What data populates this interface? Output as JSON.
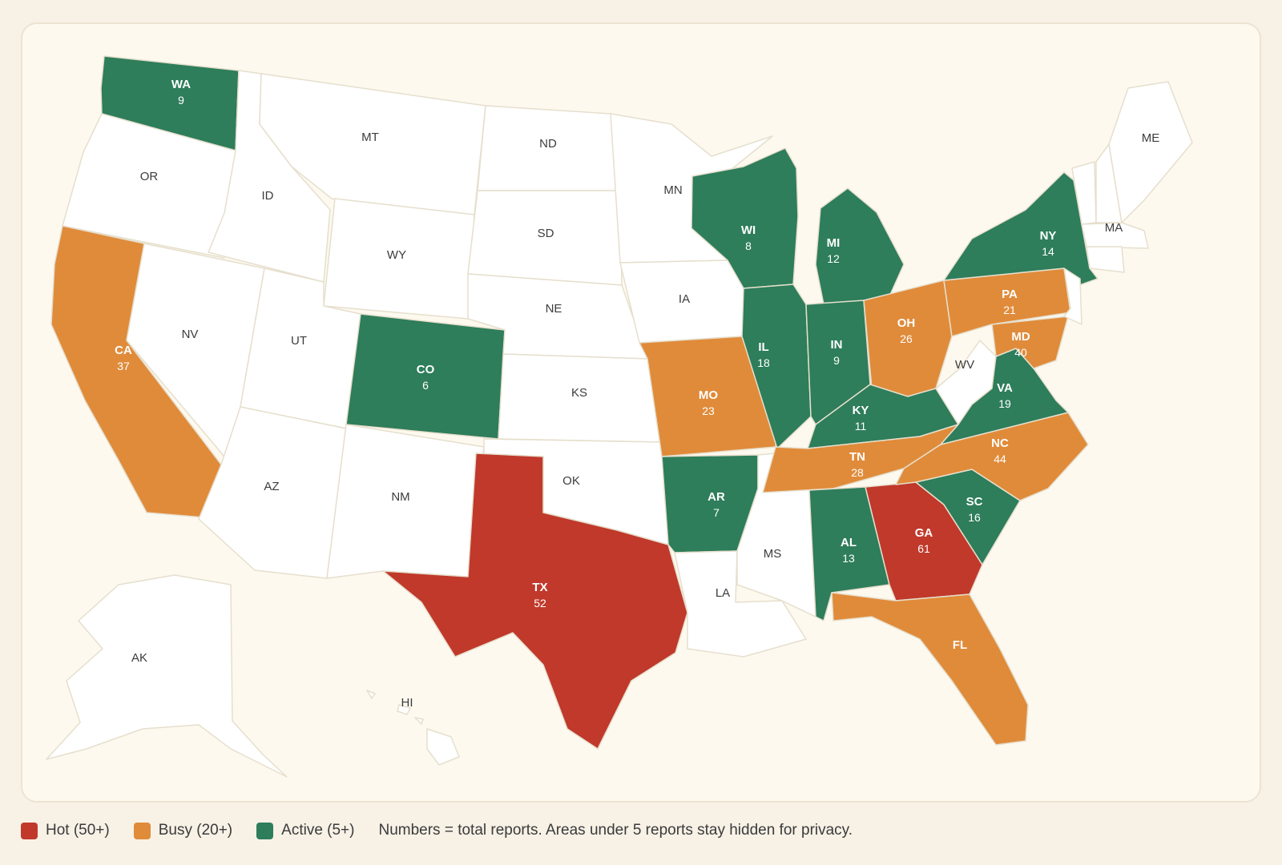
{
  "colors": {
    "hot": "#c0392b",
    "busy": "#e08b3a",
    "active": "#2e7d5b",
    "none": "#ffffff"
  },
  "legend": {
    "items": [
      {
        "key": "hot",
        "label": "Hot (50+)"
      },
      {
        "key": "busy",
        "label": "Busy (20+)"
      },
      {
        "key": "active",
        "label": "Active (5+)"
      }
    ],
    "note": "Numbers = total reports. Areas under 5 reports stay hidden for privacy."
  },
  "states": [
    {
      "abbr": "WA",
      "reports": 9,
      "level": "active"
    },
    {
      "abbr": "OR",
      "level": "none"
    },
    {
      "abbr": "CA",
      "reports": 37,
      "level": "busy"
    },
    {
      "abbr": "ID",
      "level": "none"
    },
    {
      "abbr": "NV",
      "level": "none"
    },
    {
      "abbr": "MT",
      "level": "none"
    },
    {
      "abbr": "WY",
      "level": "none"
    },
    {
      "abbr": "UT",
      "level": "none"
    },
    {
      "abbr": "AZ",
      "level": "none"
    },
    {
      "abbr": "CO",
      "reports": 6,
      "level": "active"
    },
    {
      "abbr": "NM",
      "level": "none"
    },
    {
      "abbr": "ND",
      "level": "none"
    },
    {
      "abbr": "SD",
      "level": "none"
    },
    {
      "abbr": "NE",
      "level": "none"
    },
    {
      "abbr": "KS",
      "level": "none"
    },
    {
      "abbr": "OK",
      "level": "none"
    },
    {
      "abbr": "TX",
      "reports": 52,
      "level": "hot"
    },
    {
      "abbr": "MN",
      "level": "none"
    },
    {
      "abbr": "IA",
      "level": "none"
    },
    {
      "abbr": "MO",
      "reports": 23,
      "level": "busy"
    },
    {
      "abbr": "AR",
      "reports": 7,
      "level": "active"
    },
    {
      "abbr": "LA",
      "level": "none"
    },
    {
      "abbr": "WI",
      "reports": 8,
      "level": "active"
    },
    {
      "abbr": "IL",
      "reports": 18,
      "level": "active"
    },
    {
      "abbr": "MS",
      "level": "none"
    },
    {
      "abbr": "MI",
      "reports": 12,
      "level": "active"
    },
    {
      "abbr": "IN",
      "reports": 9,
      "level": "active"
    },
    {
      "abbr": "KY",
      "reports": 11,
      "level": "active"
    },
    {
      "abbr": "TN",
      "reports": 28,
      "level": "busy"
    },
    {
      "abbr": "AL",
      "reports": 13,
      "level": "active"
    },
    {
      "abbr": "OH",
      "reports": 26,
      "level": "busy"
    },
    {
      "abbr": "GA",
      "reports": 61,
      "level": "hot"
    },
    {
      "abbr": "FL",
      "level": "busy"
    },
    {
      "abbr": "SC",
      "reports": 16,
      "level": "active"
    },
    {
      "abbr": "NC",
      "reports": 44,
      "level": "busy"
    },
    {
      "abbr": "VA",
      "reports": 19,
      "level": "active"
    },
    {
      "abbr": "WV",
      "level": "none"
    },
    {
      "abbr": "PA",
      "reports": 21,
      "level": "busy"
    },
    {
      "abbr": "MD",
      "reports": 40,
      "level": "busy"
    },
    {
      "abbr": "NY",
      "reports": 14,
      "level": "active"
    },
    {
      "abbr": "MA",
      "level": "none"
    },
    {
      "abbr": "ME",
      "level": "none"
    },
    {
      "abbr": "AK",
      "level": "none"
    },
    {
      "abbr": "HI",
      "level": "none"
    }
  ]
}
